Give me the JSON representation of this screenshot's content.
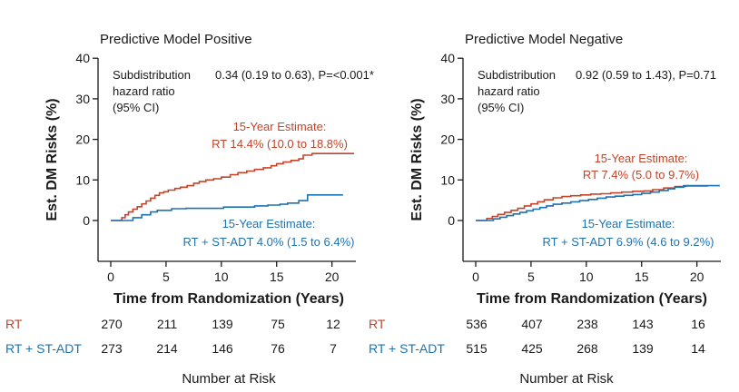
{
  "colors": {
    "rt": "#c0452a",
    "adt": "#1f72b0",
    "axis": "#1a1a1a"
  },
  "chart_data": [
    {
      "type": "line",
      "title": "Predictive Model Positive",
      "xlabel": "Time from Randomization (Years)",
      "ylabel": "Est. DM Risks (%)",
      "xlim": [
        0,
        22
      ],
      "ylim": [
        0,
        40
      ],
      "xticks": [
        0,
        5,
        10,
        15,
        20
      ],
      "yticks": [
        0,
        10,
        20,
        30,
        40
      ],
      "hr_label": "Subdistribution hazard ratio (95% CI)",
      "hr_label_lines": [
        "Subdistribution",
        "hazard ratio",
        "(95% CI)"
      ],
      "hr_value": "0.34 (0.19 to 0.63), P=<0.001*",
      "series": [
        {
          "name": "RT",
          "estimate_heading": "15-Year Estimate:",
          "estimate_text": "RT 14.4% (10.0 to 18.8%)",
          "x": [
            0,
            0.6,
            1.0,
            1.3,
            1.6,
            2.0,
            2.4,
            2.8,
            3.2,
            3.6,
            4.0,
            4.4,
            4.8,
            5.2,
            5.8,
            6.3,
            6.9,
            7.5,
            8.0,
            8.6,
            9.3,
            10.0,
            10.8,
            11.5,
            12.3,
            13.0,
            13.8,
            14.5,
            15.0,
            15.6,
            16.3,
            17.0,
            17.4,
            18.2,
            19.0,
            20.0,
            21.0,
            22.0
          ],
          "y": [
            0,
            0,
            0.7,
            1.4,
            2.1,
            2.8,
            3.4,
            4.1,
            4.8,
            5.5,
            6.2,
            6.8,
            7.1,
            7.5,
            7.9,
            8.2,
            8.6,
            9.2,
            9.6,
            10.0,
            10.3,
            10.7,
            11.3,
            11.8,
            12.2,
            12.6,
            13.0,
            13.5,
            14.0,
            14.4,
            14.8,
            15.2,
            16.1,
            16.5,
            16.5,
            16.5,
            16.5,
            16.5
          ]
        },
        {
          "name": "RT + ST-ADT",
          "estimate_heading": "15-Year Estimate:",
          "estimate_text": "RT + ST-ADT 4.0% (1.5 to 6.4%)",
          "x": [
            0,
            1.2,
            2.0,
            2.8,
            3.6,
            4.2,
            5.5,
            6.8,
            8.5,
            10.2,
            11.8,
            13.0,
            14.2,
            15.3,
            16.0,
            17.0,
            17.8,
            20.0,
            21.0
          ],
          "y": [
            0,
            0,
            0.7,
            1.4,
            2.1,
            2.5,
            2.9,
            3.0,
            3.0,
            3.3,
            3.3,
            3.6,
            3.8,
            4.0,
            4.3,
            4.9,
            6.3,
            6.3,
            6.3
          ]
        }
      ],
      "risk_table": {
        "title": "Number at Risk",
        "rows": [
          {
            "label": "RT",
            "values": [
              "270",
              "211",
              "139",
              "75",
              "12"
            ]
          },
          {
            "label": "RT + ST-ADT",
            "values": [
              "273",
              "214",
              "146",
              "76",
              "7"
            ]
          }
        ]
      }
    },
    {
      "type": "line",
      "title": "Predictive Model Negative",
      "xlabel": "Time from Randomization (Years)",
      "ylabel": "Est. DM Risks (%)",
      "xlim": [
        0,
        22
      ],
      "ylim": [
        0,
        40
      ],
      "xticks": [
        0,
        5,
        10,
        15,
        20
      ],
      "yticks": [
        0,
        10,
        20,
        30,
        40
      ],
      "hr_label": "Subdistribution hazard ratio (95% CI)",
      "hr_label_lines": [
        "Subdistribution",
        "hazard ratio",
        "(95% CI)"
      ],
      "hr_value": "0.92 (0.59 to 1.43), P=0.71",
      "series": [
        {
          "name": "RT",
          "estimate_heading": "15-Year Estimate:",
          "estimate_text": "RT 7.4% (5.0 to 9.7%)",
          "x": [
            0,
            0.6,
            1.0,
            1.5,
            2.0,
            2.6,
            3.2,
            3.8,
            4.4,
            5.0,
            5.6,
            6.2,
            7.0,
            7.8,
            8.6,
            9.5,
            10.4,
            11.3,
            12.2,
            13.2,
            14.2,
            15.2,
            16.0,
            17.0,
            18.0,
            19.0,
            20.0,
            21.0
          ],
          "y": [
            0,
            0,
            0.5,
            1.0,
            1.5,
            2.0,
            2.5,
            3.0,
            3.6,
            4.1,
            4.6,
            5.1,
            5.6,
            5.9,
            6.1,
            6.3,
            6.5,
            6.6,
            6.8,
            7.0,
            7.2,
            7.3,
            7.6,
            8.0,
            8.4,
            8.5,
            8.5,
            8.5
          ]
        },
        {
          "name": "RT + ST-ADT",
          "estimate_heading": "15-Year Estimate:",
          "estimate_text": "RT + ST-ADT 6.9% (4.6 to 9.2%)",
          "x": [
            0,
            1.0,
            1.6,
            2.2,
            2.8,
            3.4,
            4.0,
            4.6,
            5.2,
            5.8,
            6.4,
            7.0,
            7.8,
            8.6,
            9.4,
            10.2,
            11.0,
            11.8,
            12.6,
            13.4,
            14.2,
            15.0,
            15.8,
            16.6,
            17.4,
            18.0,
            18.8,
            20.0,
            21.0,
            22.0
          ],
          "y": [
            0,
            0,
            0.4,
            0.8,
            1.2,
            1.6,
            2.0,
            2.4,
            2.8,
            3.2,
            3.6,
            4.0,
            4.3,
            4.6,
            4.9,
            5.2,
            5.5,
            5.8,
            6.0,
            6.2,
            6.4,
            6.7,
            7.0,
            7.4,
            7.8,
            8.2,
            8.6,
            8.6,
            8.6,
            8.4
          ]
        }
      ],
      "risk_table": {
        "title": "Number at Risk",
        "rows": [
          {
            "label": "RT",
            "values": [
              "536",
              "407",
              "238",
              "143",
              "16"
            ]
          },
          {
            "label": "RT + ST-ADT",
            "values": [
              "515",
              "425",
              "268",
              "139",
              "14"
            ]
          }
        ]
      }
    }
  ]
}
